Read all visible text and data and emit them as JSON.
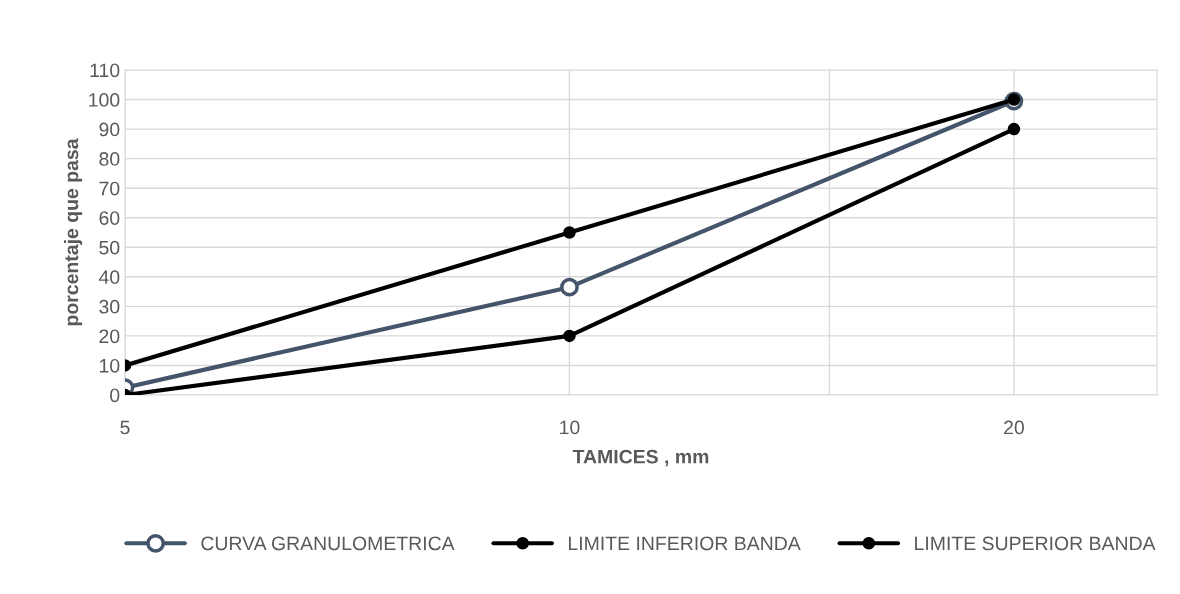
{
  "chart_data": {
    "type": "line",
    "xlabel": "TAMICES , mm",
    "ylabel": "porcentaje que pasa",
    "x": [
      5,
      10,
      20
    ],
    "series": [
      {
        "name": "CURVA GRANULOMETRICA",
        "color": "#44546a",
        "values": [
          2.5,
          36.5,
          99.5
        ],
        "marker": "circle"
      },
      {
        "name": "LIMITE INFERIOR BANDA",
        "color": "#000000",
        "values": [
          0,
          20,
          90
        ],
        "marker": "circle"
      },
      {
        "name": "LIMITE SUPERIOR BANDA",
        "color": "#000000",
        "values": [
          10,
          55,
          100
        ],
        "marker": "circle"
      }
    ],
    "log": "x",
    "xlim": [
      5,
      25
    ],
    "xticks": [
      5,
      10,
      {
        "value": 15,
        "label": null
      },
      20
    ],
    "ylim": [
      0,
      110
    ],
    "yticks": [
      0,
      10,
      20,
      30,
      40,
      50,
      60,
      70,
      80,
      90,
      100,
      110
    ],
    "grid": true,
    "legend": "bottom"
  }
}
